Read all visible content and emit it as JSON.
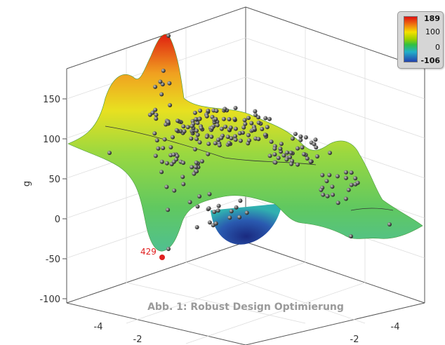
{
  "chart_data": {
    "type": "surface3d",
    "title": "",
    "caption": "Abb. 1: Robust Design Optimierung",
    "z_axis": {
      "label": "g",
      "ticks": [
        "150",
        "100",
        "50",
        "0",
        "-50",
        "-100"
      ]
    },
    "x_axis": {
      "ticks": [
        "-4",
        "-2"
      ]
    },
    "y_axis": {
      "ticks": [
        "-4",
        "-2"
      ]
    },
    "colorbar": {
      "max": "189",
      "mid_upper": "100",
      "mid": "0",
      "min": "-106",
      "colors": [
        "#e01010",
        "#f07a10",
        "#f4e000",
        "#9ad000",
        "#30c040",
        "#22b0c8",
        "#2242b0"
      ]
    },
    "highlighted_point": {
      "label": "429",
      "color": "#e02020"
    },
    "sample_points_color": "#333333"
  }
}
